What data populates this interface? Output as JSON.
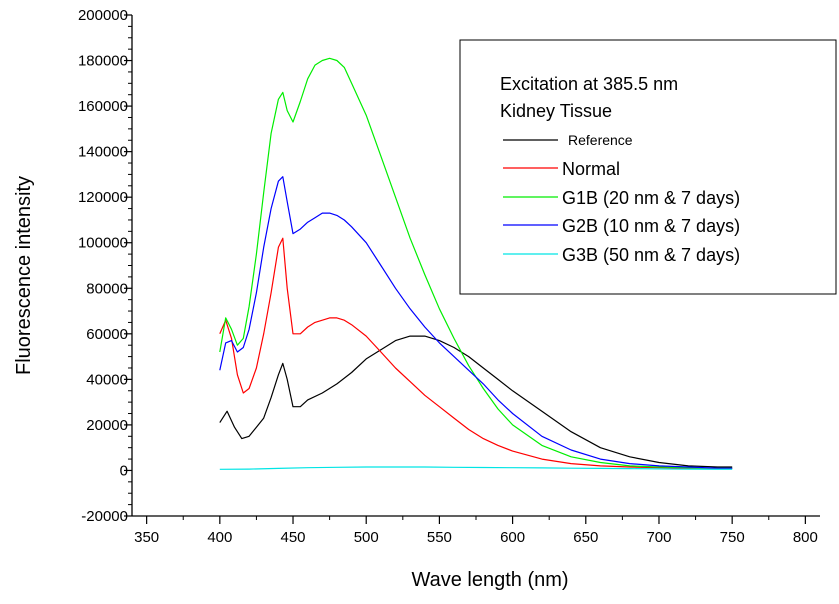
{
  "chart_data": {
    "type": "line",
    "xlabel": "Wave length (nm)",
    "ylabel": "Fluorescence intensity",
    "xlim": [
      340,
      810
    ],
    "ylim": [
      -20000,
      200000
    ],
    "x_ticks": [
      350,
      400,
      450,
      500,
      550,
      600,
      650,
      700,
      750,
      800
    ],
    "y_ticks": [
      -20000,
      0,
      20000,
      40000,
      60000,
      80000,
      100000,
      120000,
      140000,
      160000,
      180000,
      200000
    ],
    "legend": {
      "position": "top-right",
      "title_lines": [
        "Excitation at 385.5 nm",
        "Kidney Tissue"
      ]
    },
    "series": [
      {
        "name": "Reference",
        "color": "#000000",
        "x": [
          400,
          405,
          410,
          415,
          420,
          425,
          430,
          435,
          440,
          443,
          446,
          450,
          455,
          460,
          470,
          480,
          490,
          500,
          510,
          520,
          530,
          540,
          550,
          560,
          570,
          580,
          590,
          600,
          620,
          640,
          660,
          680,
          700,
          720,
          740,
          750
        ],
        "y": [
          21000,
          26000,
          19000,
          14000,
          15000,
          19000,
          23000,
          32000,
          42000,
          47000,
          40000,
          28000,
          28000,
          31000,
          34000,
          38000,
          43000,
          49000,
          53000,
          57000,
          59000,
          59000,
          57000,
          54000,
          50000,
          45000,
          40000,
          35000,
          26000,
          17000,
          10000,
          6000,
          3500,
          2000,
          1500,
          1500
        ]
      },
      {
        "name": "Normal",
        "color": "#ff0000",
        "x": [
          400,
          404,
          408,
          412,
          416,
          420,
          425,
          430,
          435,
          440,
          443,
          446,
          450,
          455,
          460,
          465,
          470,
          475,
          480,
          485,
          490,
          500,
          510,
          520,
          530,
          540,
          550,
          560,
          570,
          580,
          590,
          600,
          620,
          640,
          660,
          680,
          700,
          720,
          740,
          750
        ],
        "y": [
          60000,
          66000,
          58000,
          42000,
          34000,
          36000,
          45000,
          60000,
          78000,
          98000,
          102000,
          80000,
          60000,
          60000,
          63000,
          65000,
          66000,
          67000,
          67000,
          66000,
          64000,
          59000,
          52000,
          45000,
          39000,
          33000,
          28000,
          23000,
          18000,
          14000,
          11000,
          8500,
          5000,
          3000,
          2000,
          1500,
          1200,
          1000,
          1000,
          1000
        ]
      },
      {
        "name": "G1B (20 nm & 7 days)",
        "color": "#00ee00",
        "x": [
          400,
          404,
          408,
          412,
          416,
          420,
          425,
          430,
          435,
          440,
          443,
          446,
          450,
          455,
          460,
          465,
          470,
          475,
          480,
          485,
          490,
          500,
          510,
          520,
          530,
          540,
          550,
          560,
          570,
          580,
          590,
          600,
          620,
          640,
          660,
          680,
          700,
          720,
          740,
          750
        ],
        "y": [
          52000,
          67000,
          62000,
          55000,
          58000,
          72000,
          95000,
          122000,
          148000,
          163000,
          166000,
          158000,
          153000,
          162000,
          172000,
          178000,
          180000,
          181000,
          180000,
          177000,
          170000,
          156000,
          138000,
          120000,
          102000,
          86000,
          71000,
          58000,
          46000,
          36000,
          27000,
          20000,
          11000,
          6000,
          3500,
          2000,
          1500,
          1200,
          1000,
          1000
        ]
      },
      {
        "name": "G2B (10 nm & 7 days)",
        "color": "#0000ff",
        "x": [
          400,
          404,
          408,
          412,
          416,
          420,
          425,
          430,
          435,
          440,
          443,
          446,
          450,
          455,
          460,
          465,
          470,
          475,
          480,
          485,
          490,
          500,
          510,
          520,
          530,
          540,
          550,
          560,
          570,
          580,
          590,
          600,
          620,
          640,
          660,
          680,
          700,
          720,
          740,
          750
        ],
        "y": [
          44000,
          56000,
          57000,
          52000,
          54000,
          62000,
          78000,
          98000,
          115000,
          127000,
          129000,
          118000,
          104000,
          106000,
          109000,
          111000,
          113000,
          113000,
          112000,
          110000,
          107000,
          100000,
          90000,
          80000,
          71000,
          63000,
          56000,
          50000,
          44000,
          38000,
          31000,
          25000,
          15000,
          9000,
          5000,
          3000,
          2000,
          1500,
          1000,
          1000
        ]
      },
      {
        "name": "G3B (50 nm & 7 days)",
        "color": "#00e5e5",
        "x": [
          400,
          420,
          440,
          460,
          480,
          500,
          520,
          540,
          560,
          580,
          600,
          620,
          640,
          660,
          680,
          700,
          720,
          740,
          750
        ],
        "y": [
          500,
          600,
          900,
          1200,
          1400,
          1500,
          1500,
          1500,
          1400,
          1300,
          1200,
          1100,
          1000,
          900,
          800,
          700,
          600,
          500,
          500
        ]
      }
    ]
  }
}
